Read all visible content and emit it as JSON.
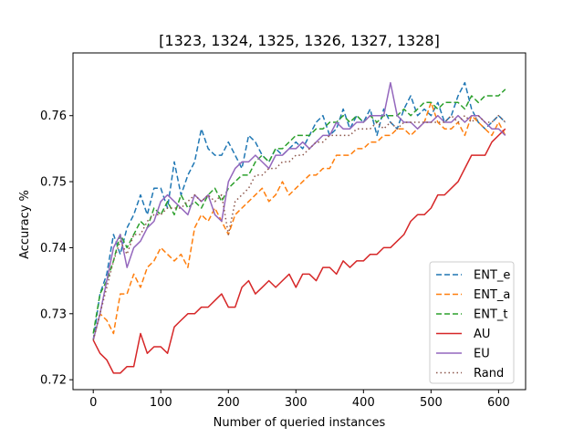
{
  "chart_data": {
    "type": "line",
    "title": "[1323, 1324, 1325, 1326, 1327, 1328]",
    "xlabel": "Number of queried instances",
    "ylabel": "Accuracy %",
    "xlim": [
      -30,
      640
    ],
    "ylim": [
      0.7185,
      0.7695
    ],
    "xticks": [
      0,
      100,
      200,
      300,
      400,
      500,
      600
    ],
    "yticks": [
      0.72,
      0.73,
      0.74,
      0.75,
      0.76
    ],
    "ytick_labels": [
      "0.72",
      "0.73",
      "0.74",
      "0.75",
      "0.76"
    ],
    "legend_position": "lower-right",
    "grid": false,
    "x": [
      0,
      10,
      20,
      30,
      40,
      50,
      60,
      70,
      80,
      90,
      100,
      110,
      120,
      130,
      140,
      150,
      160,
      170,
      180,
      190,
      200,
      210,
      220,
      230,
      240,
      250,
      260,
      270,
      280,
      290,
      300,
      310,
      320,
      330,
      340,
      350,
      360,
      370,
      380,
      390,
      400,
      410,
      420,
      430,
      440,
      450,
      460,
      470,
      480,
      490,
      500,
      510,
      520,
      530,
      540,
      550,
      560,
      570,
      580,
      590,
      600,
      610
    ],
    "series": [
      {
        "name": "ENT_e",
        "color": "#1f77b4",
        "dash": "6,3",
        "values": [
          0.726,
          0.733,
          0.736,
          0.742,
          0.739,
          0.743,
          0.745,
          0.748,
          0.745,
          0.749,
          0.749,
          0.746,
          0.753,
          0.748,
          0.751,
          0.753,
          0.758,
          0.755,
          0.754,
          0.754,
          0.756,
          0.754,
          0.752,
          0.757,
          0.756,
          0.754,
          0.753,
          0.755,
          0.754,
          0.755,
          0.756,
          0.755,
          0.757,
          0.759,
          0.76,
          0.757,
          0.758,
          0.761,
          0.758,
          0.76,
          0.759,
          0.761,
          0.757,
          0.761,
          0.759,
          0.758,
          0.761,
          0.763,
          0.76,
          0.761,
          0.76,
          0.762,
          0.759,
          0.76,
          0.763,
          0.765,
          0.761,
          0.759,
          0.758,
          0.759,
          0.76,
          0.759
        ]
      },
      {
        "name": "ENT_a",
        "color": "#ff7f0e",
        "dash": "6,3",
        "values": [
          0.726,
          0.73,
          0.729,
          0.727,
          0.733,
          0.733,
          0.736,
          0.734,
          0.737,
          0.738,
          0.74,
          0.739,
          0.738,
          0.739,
          0.737,
          0.743,
          0.745,
          0.744,
          0.746,
          0.744,
          0.742,
          0.745,
          0.746,
          0.747,
          0.748,
          0.749,
          0.747,
          0.748,
          0.75,
          0.748,
          0.749,
          0.75,
          0.751,
          0.751,
          0.752,
          0.752,
          0.754,
          0.754,
          0.754,
          0.755,
          0.755,
          0.756,
          0.756,
          0.757,
          0.757,
          0.758,
          0.758,
          0.757,
          0.758,
          0.759,
          0.762,
          0.759,
          0.758,
          0.758,
          0.759,
          0.757,
          0.76,
          0.759,
          0.758,
          0.757,
          0.759,
          0.757
        ]
      },
      {
        "name": "ENT_t",
        "color": "#2ca02c",
        "dash": "6,3",
        "values": [
          0.727,
          0.733,
          0.735,
          0.738,
          0.742,
          0.74,
          0.742,
          0.744,
          0.743,
          0.746,
          0.745,
          0.747,
          0.745,
          0.748,
          0.746,
          0.747,
          0.746,
          0.748,
          0.749,
          0.747,
          0.749,
          0.75,
          0.751,
          0.751,
          0.753,
          0.754,
          0.753,
          0.755,
          0.755,
          0.756,
          0.757,
          0.757,
          0.757,
          0.758,
          0.758,
          0.759,
          0.759,
          0.76,
          0.759,
          0.76,
          0.759,
          0.76,
          0.759,
          0.76,
          0.76,
          0.76,
          0.761,
          0.76,
          0.761,
          0.762,
          0.762,
          0.761,
          0.762,
          0.762,
          0.762,
          0.761,
          0.763,
          0.762,
          0.763,
          0.763,
          0.763,
          0.764
        ]
      },
      {
        "name": "AU",
        "color": "#d62728",
        "dash": "",
        "values": [
          0.726,
          0.724,
          0.723,
          0.721,
          0.721,
          0.722,
          0.722,
          0.727,
          0.724,
          0.725,
          0.725,
          0.724,
          0.728,
          0.729,
          0.73,
          0.73,
          0.731,
          0.731,
          0.732,
          0.733,
          0.731,
          0.731,
          0.734,
          0.735,
          0.733,
          0.734,
          0.735,
          0.734,
          0.735,
          0.736,
          0.734,
          0.736,
          0.736,
          0.735,
          0.737,
          0.737,
          0.736,
          0.738,
          0.737,
          0.738,
          0.738,
          0.739,
          0.739,
          0.74,
          0.74,
          0.741,
          0.742,
          0.744,
          0.745,
          0.745,
          0.746,
          0.748,
          0.748,
          0.749,
          0.75,
          0.752,
          0.754,
          0.754,
          0.754,
          0.756,
          0.757,
          0.758
        ]
      },
      {
        "name": "EU",
        "color": "#9467bd",
        "dash": "",
        "values": [
          0.726,
          0.73,
          0.735,
          0.74,
          0.742,
          0.737,
          0.74,
          0.741,
          0.743,
          0.744,
          0.747,
          0.748,
          0.747,
          0.746,
          0.745,
          0.748,
          0.747,
          0.748,
          0.745,
          0.744,
          0.75,
          0.752,
          0.753,
          0.753,
          0.754,
          0.753,
          0.752,
          0.754,
          0.754,
          0.755,
          0.755,
          0.756,
          0.755,
          0.756,
          0.757,
          0.757,
          0.759,
          0.758,
          0.758,
          0.759,
          0.759,
          0.76,
          0.76,
          0.76,
          0.765,
          0.76,
          0.759,
          0.759,
          0.758,
          0.759,
          0.759,
          0.76,
          0.759,
          0.759,
          0.76,
          0.759,
          0.76,
          0.76,
          0.759,
          0.758,
          0.758,
          0.757
        ]
      },
      {
        "name": "Rand",
        "color": "#8c564b",
        "dash": "1.5,3",
        "values": [
          0.726,
          0.73,
          0.734,
          0.738,
          0.741,
          0.739,
          0.742,
          0.742,
          0.744,
          0.745,
          0.745,
          0.746,
          0.746,
          0.746,
          0.747,
          0.748,
          0.747,
          0.748,
          0.747,
          0.748,
          0.742,
          0.747,
          0.748,
          0.749,
          0.751,
          0.751,
          0.752,
          0.752,
          0.753,
          0.753,
          0.754,
          0.754,
          0.755,
          0.756,
          0.756,
          0.757,
          0.757,
          0.757,
          0.757,
          0.758,
          0.758,
          0.758,
          0.759,
          0.758,
          0.759,
          0.758,
          0.759,
          0.759,
          0.759,
          0.759,
          0.759,
          0.759,
          0.759,
          0.76,
          0.759,
          0.76,
          0.759,
          0.76,
          0.759,
          0.759,
          0.76,
          0.759
        ]
      }
    ]
  }
}
